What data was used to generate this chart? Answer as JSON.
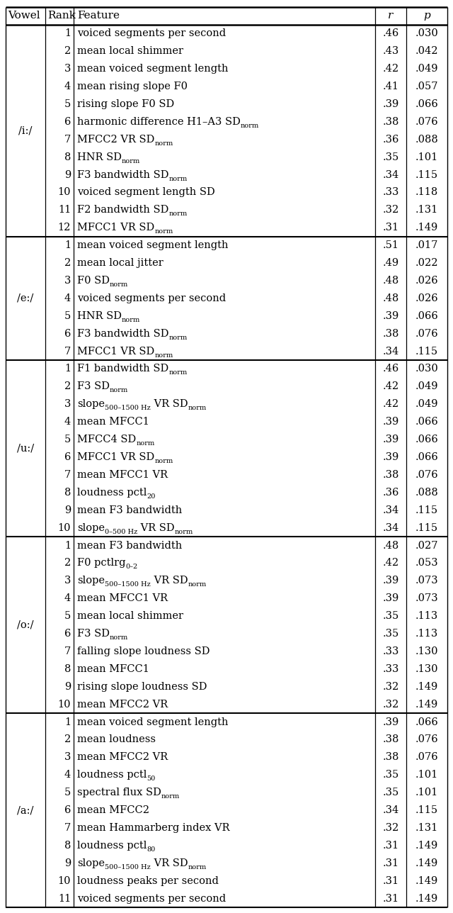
{
  "sections": [
    {
      "vowel": "/i:/",
      "rows": [
        {
          "rank": "1",
          "parts": [
            [
              "voiced segments per second",
              ""
            ]
          ],
          "r": ".46",
          "p": ".030"
        },
        {
          "rank": "2",
          "parts": [
            [
              "mean local shimmer",
              ""
            ]
          ],
          "r": ".43",
          "p": ".042"
        },
        {
          "rank": "3",
          "parts": [
            [
              "mean voiced segment length",
              ""
            ]
          ],
          "r": ".42",
          "p": ".049"
        },
        {
          "rank": "4",
          "parts": [
            [
              "mean rising slope F0",
              ""
            ]
          ],
          "r": ".41",
          "p": ".057"
        },
        {
          "rank": "5",
          "parts": [
            [
              "rising slope F0 SD",
              ""
            ]
          ],
          "r": ".39",
          "p": ".066"
        },
        {
          "rank": "6",
          "parts": [
            [
              "harmonic difference H1–A3 SD",
              "norm"
            ]
          ],
          "r": ".38",
          "p": ".076"
        },
        {
          "rank": "7",
          "parts": [
            [
              "MFCC2 VR SD",
              "norm"
            ]
          ],
          "r": ".36",
          "p": ".088"
        },
        {
          "rank": "8",
          "parts": [
            [
              "HNR SD",
              "norm"
            ]
          ],
          "r": ".35",
          "p": ".101"
        },
        {
          "rank": "9",
          "parts": [
            [
              "F3 bandwidth SD",
              "norm"
            ]
          ],
          "r": ".34",
          "p": ".115"
        },
        {
          "rank": "10",
          "parts": [
            [
              "voiced segment length SD",
              ""
            ]
          ],
          "r": ".33",
          "p": ".118"
        },
        {
          "rank": "11",
          "parts": [
            [
              "F2 bandwidth SD",
              "norm"
            ]
          ],
          "r": ".32",
          "p": ".131"
        },
        {
          "rank": "12",
          "parts": [
            [
              "MFCC1 VR SD",
              "norm"
            ]
          ],
          "r": ".31",
          "p": ".149"
        }
      ]
    },
    {
      "vowel": "/e:/",
      "rows": [
        {
          "rank": "1",
          "parts": [
            [
              "mean voiced segment length",
              ""
            ]
          ],
          "r": ".51",
          "p": ".017"
        },
        {
          "rank": "2",
          "parts": [
            [
              "mean local jitter",
              ""
            ]
          ],
          "r": ".49",
          "p": ".022"
        },
        {
          "rank": "3",
          "parts": [
            [
              "F0 SD",
              "norm"
            ]
          ],
          "r": ".48",
          "p": ".026"
        },
        {
          "rank": "4",
          "parts": [
            [
              "voiced segments per second",
              ""
            ]
          ],
          "r": ".48",
          "p": ".026"
        },
        {
          "rank": "5",
          "parts": [
            [
              "HNR SD",
              "norm"
            ]
          ],
          "r": ".39",
          "p": ".066"
        },
        {
          "rank": "6",
          "parts": [
            [
              "F3 bandwidth SD",
              "norm"
            ]
          ],
          "r": ".38",
          "p": ".076"
        },
        {
          "rank": "7",
          "parts": [
            [
              "MFCC1 VR SD",
              "norm"
            ]
          ],
          "r": ".34",
          "p": ".115"
        }
      ]
    },
    {
      "vowel": "/u:/",
      "rows": [
        {
          "rank": "1",
          "parts": [
            [
              "F1 bandwidth SD",
              "norm"
            ]
          ],
          "r": ".46",
          "p": ".030"
        },
        {
          "rank": "2",
          "parts": [
            [
              "F3 SD",
              "norm"
            ]
          ],
          "r": ".42",
          "p": ".049"
        },
        {
          "rank": "3",
          "parts": [
            [
              "slope",
              "500–1500 Hz"
            ],
            [
              " VR SD",
              "norm"
            ]
          ],
          "r": ".42",
          "p": ".049"
        },
        {
          "rank": "4",
          "parts": [
            [
              "mean MFCC1",
              ""
            ]
          ],
          "r": ".39",
          "p": ".066"
        },
        {
          "rank": "5",
          "parts": [
            [
              "MFCC4 SD",
              "norm"
            ]
          ],
          "r": ".39",
          "p": ".066"
        },
        {
          "rank": "6",
          "parts": [
            [
              "MFCC1 VR SD",
              "norm"
            ]
          ],
          "r": ".39",
          "p": ".066"
        },
        {
          "rank": "7",
          "parts": [
            [
              "mean MFCC1 VR",
              ""
            ]
          ],
          "r": ".38",
          "p": ".076"
        },
        {
          "rank": "8",
          "parts": [
            [
              "loudness pctl",
              "20"
            ]
          ],
          "r": ".36",
          "p": ".088"
        },
        {
          "rank": "9",
          "parts": [
            [
              "mean F3 bandwidth",
              ""
            ]
          ],
          "r": ".34",
          "p": ".115"
        },
        {
          "rank": "10",
          "parts": [
            [
              "slope",
              "0–500 Hz"
            ],
            [
              " VR SD",
              "norm"
            ]
          ],
          "r": ".34",
          "p": ".115"
        }
      ]
    },
    {
      "vowel": "/o:/",
      "rows": [
        {
          "rank": "1",
          "parts": [
            [
              "mean F3 bandwidth",
              ""
            ]
          ],
          "r": ".48",
          "p": ".027"
        },
        {
          "rank": "2",
          "parts": [
            [
              "F0 pctlrg",
              "0–2"
            ]
          ],
          "r": ".42",
          "p": ".053"
        },
        {
          "rank": "3",
          "parts": [
            [
              "slope",
              "500–1500 Hz"
            ],
            [
              " VR SD",
              "norm"
            ]
          ],
          "r": ".39",
          "p": ".073"
        },
        {
          "rank": "4",
          "parts": [
            [
              "mean MFCC1 VR",
              ""
            ]
          ],
          "r": ".39",
          "p": ".073"
        },
        {
          "rank": "5",
          "parts": [
            [
              "mean local shimmer",
              ""
            ]
          ],
          "r": ".35",
          "p": ".113"
        },
        {
          "rank": "6",
          "parts": [
            [
              "F3 SD",
              "norm"
            ]
          ],
          "r": ".35",
          "p": ".113"
        },
        {
          "rank": "7",
          "parts": [
            [
              "falling slope loudness SD",
              ""
            ]
          ],
          "r": ".33",
          "p": ".130"
        },
        {
          "rank": "8",
          "parts": [
            [
              "mean MFCC1",
              ""
            ]
          ],
          "r": ".33",
          "p": ".130"
        },
        {
          "rank": "9",
          "parts": [
            [
              "rising slope loudness SD",
              ""
            ]
          ],
          "r": ".32",
          "p": ".149"
        },
        {
          "rank": "10",
          "parts": [
            [
              "mean MFCC2 VR",
              ""
            ]
          ],
          "r": ".32",
          "p": ".149"
        }
      ]
    },
    {
      "vowel": "/a:/",
      "rows": [
        {
          "rank": "1",
          "parts": [
            [
              "mean voiced segment length",
              ""
            ]
          ],
          "r": ".39",
          "p": ".066"
        },
        {
          "rank": "2",
          "parts": [
            [
              "mean loudness",
              ""
            ]
          ],
          "r": ".38",
          "p": ".076"
        },
        {
          "rank": "3",
          "parts": [
            [
              "mean MFCC2 VR",
              ""
            ]
          ],
          "r": ".38",
          "p": ".076"
        },
        {
          "rank": "4",
          "parts": [
            [
              "loudness pctl",
              "50"
            ]
          ],
          "r": ".35",
          "p": ".101"
        },
        {
          "rank": "5",
          "parts": [
            [
              "spectral flux SD",
              "norm"
            ]
          ],
          "r": ".35",
          "p": ".101"
        },
        {
          "rank": "6",
          "parts": [
            [
              "mean MFCC2",
              ""
            ]
          ],
          "r": ".34",
          "p": ".115"
        },
        {
          "rank": "7",
          "parts": [
            [
              "mean Hammarberg index VR",
              ""
            ]
          ],
          "r": ".32",
          "p": ".131"
        },
        {
          "rank": "8",
          "parts": [
            [
              "loudness pctl",
              "80"
            ]
          ],
          "r": ".31",
          "p": ".149"
        },
        {
          "rank": "9",
          "parts": [
            [
              "slope",
              "500–1500 Hz"
            ],
            [
              " VR SD",
              "norm"
            ]
          ],
          "r": ".31",
          "p": ".149"
        },
        {
          "rank": "10",
          "parts": [
            [
              "loudness peaks per second",
              ""
            ]
          ],
          "r": ".31",
          "p": ".149"
        },
        {
          "rank": "11",
          "parts": [
            [
              "voiced segments per second",
              ""
            ]
          ],
          "r": ".31",
          "p": ".149"
        }
      ]
    }
  ],
  "fs_main": 10.5,
  "fs_sub": 7.0,
  "fs_header": 11.0
}
